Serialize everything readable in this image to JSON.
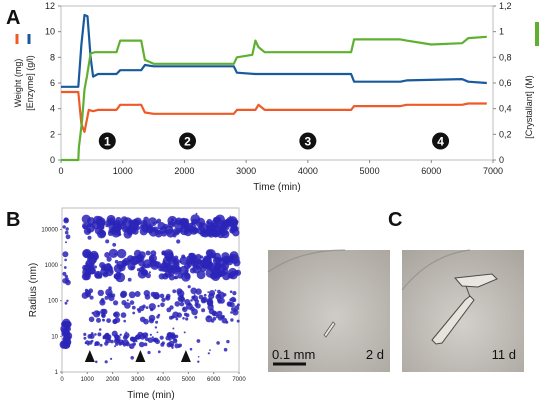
{
  "panel_labels": [
    "A",
    "B",
    "C"
  ],
  "chart_data": [
    {
      "type": "line",
      "xlabel": "Time (min)",
      "ylabel_left_1": "Weight (mg)",
      "ylabel_left_2": "[Enzyme] (g/l)",
      "ylabel_right": "[Crystallant] (M)",
      "xlim": [
        0,
        7000
      ],
      "ylim_left": [
        0,
        12
      ],
      "ylim_right": [
        0,
        1.2
      ],
      "x_ticks": [
        0,
        1000,
        2000,
        3000,
        4000,
        5000,
        6000,
        7000
      ],
      "y_left_ticks": [
        0,
        2,
        4,
        6,
        8,
        10,
        12
      ],
      "y_right_ticks": [
        "0",
        "0,2",
        "0,4",
        "0,6",
        "0,8",
        "1",
        "1,2"
      ],
      "colors": {
        "weight": "#f05a28",
        "enzyme": "#1a5a9c",
        "crystallant": "#5fb030"
      },
      "series": [
        {
          "key": "weight",
          "axis": "left",
          "color": "#f05a28",
          "x": [
            0,
            280,
            330,
            380,
            450,
            520,
            600,
            900,
            960,
            1300,
            1360,
            1500,
            2000,
            2800,
            2850,
            3150,
            3200,
            3300,
            3400,
            4700,
            4750,
            5500,
            5600,
            6500,
            6600,
            6900
          ],
          "y": [
            5.3,
            5.3,
            2.8,
            2.2,
            3.9,
            3.8,
            3.9,
            3.9,
            4.3,
            4.3,
            3.7,
            3.6,
            3.6,
            3.6,
            3.9,
            3.9,
            4.3,
            3.9,
            3.9,
            3.9,
            4.2,
            4.2,
            4.3,
            4.3,
            4.4,
            4.4
          ]
        },
        {
          "key": "enzyme",
          "axis": "left",
          "color": "#1a5a9c",
          "x": [
            0,
            280,
            330,
            380,
            430,
            480,
            520,
            600,
            900,
            960,
            1300,
            1360,
            1500,
            2000,
            2800,
            2850,
            3150,
            3200,
            3300,
            3400,
            4700,
            4750,
            5500,
            5600,
            6500,
            6600,
            6900
          ],
          "y": [
            5.7,
            5.7,
            9.0,
            11.3,
            11.2,
            8.0,
            6.5,
            6.7,
            6.7,
            7.0,
            7.0,
            7.4,
            7.3,
            7.3,
            7.3,
            6.8,
            6.7,
            6.7,
            6.7,
            6.7,
            6.7,
            6.1,
            6.1,
            6.2,
            6.3,
            6.1,
            6.0
          ]
        },
        {
          "key": "crystallant",
          "axis": "right",
          "color": "#5fb030",
          "x": [
            0,
            280,
            290,
            340,
            380,
            420,
            480,
            550,
            900,
            960,
            1300,
            1360,
            1500,
            2000,
            2800,
            2850,
            3100,
            3150,
            3200,
            3300,
            3400,
            4700,
            4750,
            5500,
            5600,
            6000,
            6500,
            6600,
            6900
          ],
          "y": [
            0,
            0,
            0.1,
            0.3,
            0.55,
            0.65,
            0.83,
            0.84,
            0.84,
            0.93,
            0.93,
            0.78,
            0.75,
            0.75,
            0.75,
            0.8,
            0.82,
            0.93,
            0.88,
            0.84,
            0.84,
            0.84,
            0.94,
            0.94,
            0.93,
            0.9,
            0.91,
            0.95,
            0.96
          ]
        }
      ],
      "stage_markers": [
        {
          "label": "1",
          "x": 750
        },
        {
          "label": "2",
          "x": 2050
        },
        {
          "label": "3",
          "x": 4000
        },
        {
          "label": "4",
          "x": 6150
        }
      ]
    },
    {
      "type": "scatter",
      "xlabel": "Time (min)",
      "ylabel": "Radius (nm)",
      "xlim": [
        0,
        7000
      ],
      "x_ticks": [
        0,
        1000,
        2000,
        3000,
        4000,
        5000,
        6000,
        7000
      ],
      "y_scale": "log",
      "y_ticks": [
        1,
        10,
        100,
        1000,
        10000
      ],
      "color": "#2b24b8",
      "bands": [
        {
          "label": "~10 nm",
          "x_start": 900,
          "x_end": 4700,
          "y_center": 8
        },
        {
          "label": "~70 nm",
          "x_start": 900,
          "x_end": 7000,
          "y_center": 70
        },
        {
          "label": "~1000 nm",
          "x_start": 900,
          "x_end": 7000,
          "y_center": 1000
        },
        {
          "label": "~10000 nm",
          "x_start": 900,
          "x_end": 7000,
          "y_center": 12000
        }
      ],
      "arrows_at_x": [
        1100,
        3100,
        4900
      ]
    }
  ],
  "photos": [
    {
      "scale_label": "0.1 mm",
      "time_label": "2 d"
    },
    {
      "time_label": "11 d"
    }
  ]
}
